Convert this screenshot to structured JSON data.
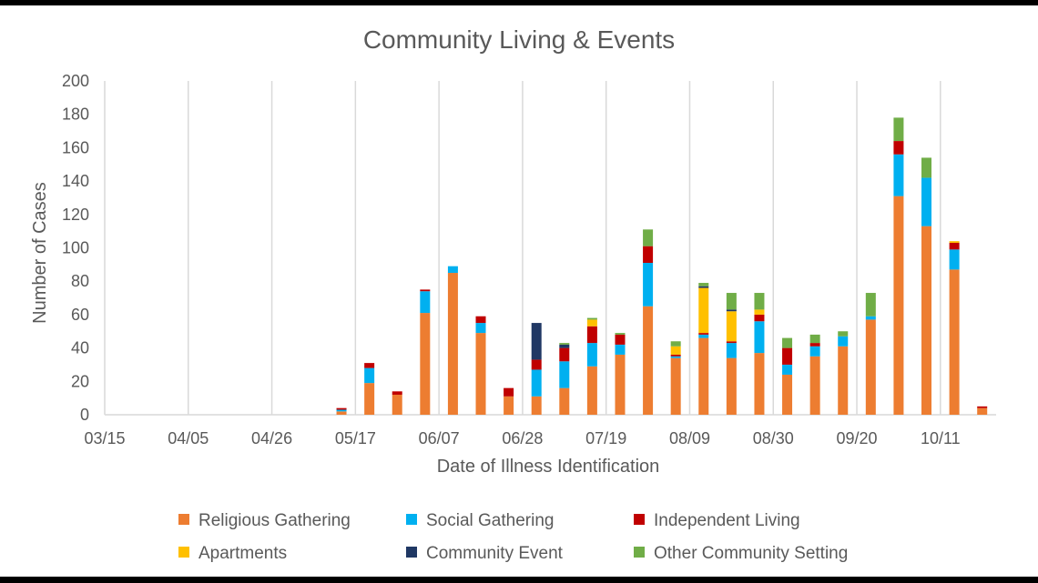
{
  "chart_data": {
    "type": "bar",
    "stacked": true,
    "title": "Community Living & Events",
    "xlabel": "Date of Illness Identification",
    "ylabel": "Number of Cases",
    "ylim": [
      0,
      200
    ],
    "yticks": [
      0,
      20,
      40,
      60,
      80,
      100,
      120,
      140,
      160,
      180,
      200
    ],
    "xtick_labels": [
      "03/15",
      "04/05",
      "04/26",
      "05/17",
      "06/07",
      "06/28",
      "07/19",
      "08/09",
      "08/30",
      "09/20",
      "10/11"
    ],
    "grid": "vertical",
    "legend_position": "bottom",
    "categories": [
      "03/15",
      "03/22",
      "03/29",
      "04/05",
      "04/12",
      "04/19",
      "04/26",
      "05/03",
      "05/10",
      "05/17",
      "05/24",
      "05/31",
      "06/07",
      "06/14",
      "06/21",
      "06/28",
      "07/05",
      "07/12",
      "07/19",
      "07/26",
      "08/02",
      "08/09",
      "08/16",
      "08/23",
      "08/30",
      "09/06",
      "09/13",
      "09/20",
      "09/27",
      "10/04",
      "10/11",
      "10/18"
    ],
    "series": [
      {
        "name": "Religious Gathering",
        "color": "#ED7D31",
        "values": [
          0,
          0,
          0,
          0,
          0,
          0,
          0,
          0,
          2,
          19,
          12,
          61,
          85,
          49,
          11,
          11,
          16,
          29,
          36,
          65,
          34,
          46,
          34,
          37,
          24,
          35,
          41,
          57,
          131,
          113,
          87,
          4
        ]
      },
      {
        "name": "Social Gathering",
        "color": "#00B0F0",
        "values": [
          0,
          0,
          0,
          0,
          0,
          0,
          0,
          0,
          1,
          9,
          0,
          13,
          4,
          6,
          0,
          16,
          16,
          14,
          6,
          26,
          1,
          2,
          9,
          19,
          6,
          6,
          6,
          2,
          25,
          29,
          12,
          0
        ]
      },
      {
        "name": "Independent Living",
        "color": "#C00000",
        "values": [
          0,
          0,
          0,
          0,
          0,
          0,
          0,
          0,
          1,
          3,
          2,
          1,
          0,
          4,
          5,
          6,
          8,
          10,
          6,
          10,
          1,
          1,
          1,
          4,
          10,
          2,
          0,
          0,
          8,
          0,
          4,
          1
        ]
      },
      {
        "name": "Apartments",
        "color": "#FFC000",
        "values": [
          0,
          0,
          0,
          0,
          0,
          0,
          0,
          0,
          0,
          0,
          0,
          0,
          0,
          0,
          0,
          0,
          0,
          4,
          0,
          0,
          5,
          27,
          18,
          3,
          0,
          0,
          0,
          0,
          0,
          0,
          1,
          0
        ]
      },
      {
        "name": "Community Event",
        "color": "#203864",
        "values": [
          0,
          0,
          0,
          0,
          0,
          0,
          0,
          0,
          0,
          0,
          0,
          0,
          0,
          0,
          0,
          22,
          2,
          0,
          0,
          0,
          0,
          1,
          1,
          0,
          0,
          0,
          0,
          0,
          0,
          0,
          0,
          0
        ]
      },
      {
        "name": "Other Community Setting",
        "color": "#70AD47",
        "values": [
          0,
          0,
          0,
          0,
          0,
          0,
          0,
          0,
          0,
          0,
          0,
          0,
          0,
          0,
          0,
          0,
          1,
          1,
          1,
          10,
          3,
          2,
          10,
          10,
          6,
          5,
          3,
          14,
          14,
          12,
          0,
          0
        ]
      }
    ]
  }
}
